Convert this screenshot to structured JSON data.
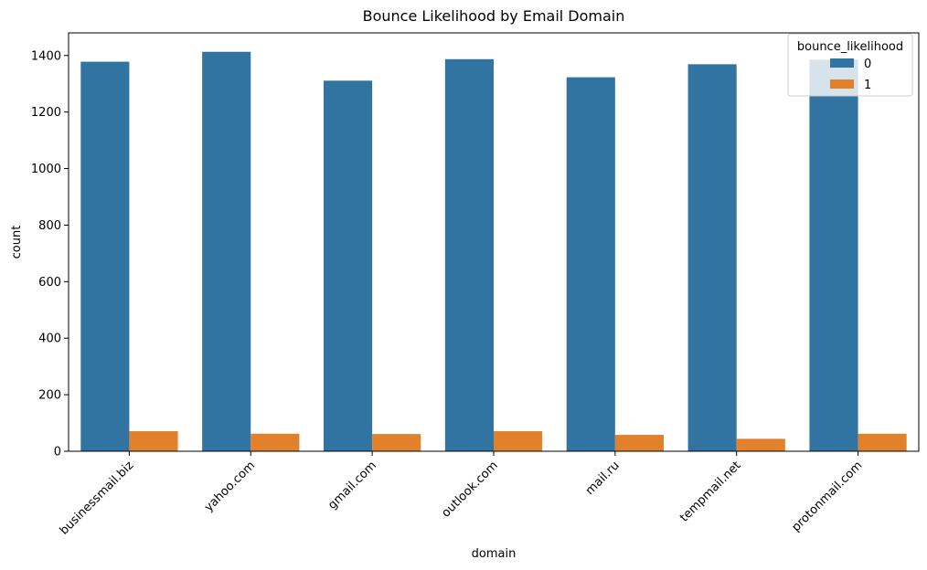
{
  "chart_data": {
    "type": "bar",
    "title": "Bounce Likelihood by Email Domain",
    "xlabel": "domain",
    "ylabel": "count",
    "categories": [
      "businessmail.biz",
      "yahoo.com",
      "gmail.com",
      "outlook.com",
      "mail.ru",
      "tempmail.net",
      "protonmail.com"
    ],
    "series": [
      {
        "name": "0",
        "color": "#3274a1",
        "values": [
          1378,
          1413,
          1311,
          1387,
          1323,
          1369,
          1385
        ]
      },
      {
        "name": "1",
        "color": "#e1812c",
        "values": [
          71,
          62,
          61,
          71,
          58,
          44,
          62
        ]
      }
    ],
    "ylim": [
      0,
      1480
    ],
    "yticks": [
      0,
      200,
      400,
      600,
      800,
      1000,
      1200,
      1400
    ],
    "grid": false,
    "legend": {
      "title": "bounce_likelihood",
      "placement": "top-right"
    }
  }
}
